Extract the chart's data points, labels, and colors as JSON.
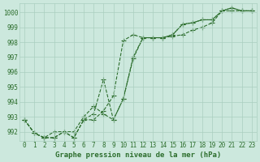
{
  "xlabel": "Graphe pression niveau de la mer (hPa)",
  "hours": [
    0,
    1,
    2,
    3,
    4,
    5,
    6,
    7,
    8,
    9,
    10,
    11,
    12,
    13,
    14,
    15,
    16,
    17,
    18,
    19,
    20,
    21,
    22,
    23
  ],
  "line1": [
    992.8,
    991.9,
    991.6,
    991.6,
    992.0,
    991.6,
    992.8,
    992.8,
    993.4,
    994.4,
    998.1,
    998.5,
    998.3,
    998.3,
    998.3,
    998.4,
    998.5,
    998.8,
    999.0,
    999.3,
    1000.1,
    1000.1,
    1000.1,
    1000.1
  ],
  "line2": [
    992.8,
    991.9,
    991.6,
    991.6,
    992.0,
    991.6,
    992.8,
    993.2,
    995.5,
    992.8,
    994.2,
    996.9,
    998.3,
    998.3,
    998.3,
    998.5,
    999.2,
    999.3,
    999.5,
    999.5,
    1000.1,
    1000.3,
    1000.1,
    1000.1
  ],
  "line3": [
    992.8,
    991.9,
    991.6,
    992.0,
    992.0,
    992.0,
    993.0,
    993.7,
    993.2,
    992.8,
    994.2,
    997.0,
    998.3,
    998.3,
    998.3,
    998.5,
    999.2,
    999.3,
    999.5,
    999.5,
    1000.1,
    1000.3,
    1000.1,
    1000.1
  ],
  "line_color": "#2d6e2d",
  "bg_color": "#cce8dd",
  "grid_color": "#aacfbf",
  "ylim_min": 991.4,
  "ylim_max": 1000.6,
  "yticks": [
    992,
    993,
    994,
    995,
    996,
    997,
    998,
    999,
    1000
  ],
  "xticks": [
    0,
    1,
    2,
    3,
    4,
    5,
    6,
    7,
    8,
    9,
    10,
    11,
    12,
    13,
    14,
    15,
    16,
    17,
    18,
    19,
    20,
    21,
    22,
    23
  ],
  "marker": "+",
  "markersize": 4,
  "linewidth": 0.8,
  "tick_fontsize": 5.5,
  "xlabel_fontsize": 6.5
}
